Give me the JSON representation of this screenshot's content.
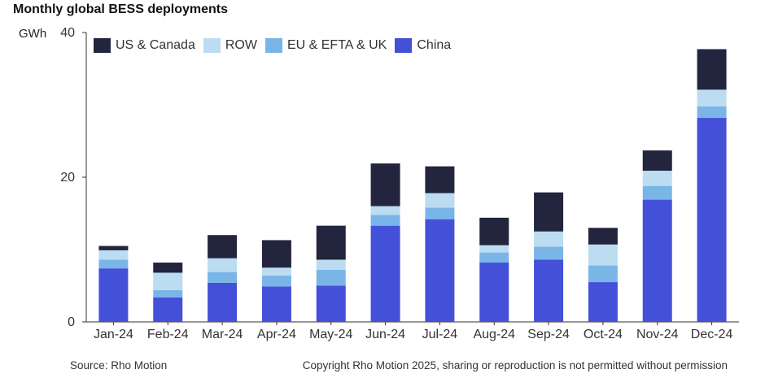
{
  "chart_data": {
    "type": "bar",
    "stacked": true,
    "title": "Monthly global BESS deployments",
    "ylabel": "GWh",
    "xlabel": "",
    "ylim": [
      0,
      40
    ],
    "yticks": [
      0,
      20,
      40
    ],
    "grid": false,
    "legend_position": "top-left",
    "categories": [
      "Jan-24",
      "Feb-24",
      "Mar-24",
      "Apr-24",
      "May-24",
      "Jun-24",
      "Jul-24",
      "Aug-24",
      "Sep-24",
      "Oct-24",
      "Nov-24",
      "Dec-24"
    ],
    "series": [
      {
        "name": "China",
        "color": "#4550d9",
        "values": [
          7.4,
          3.4,
          5.4,
          4.9,
          5.0,
          13.3,
          14.2,
          8.2,
          8.6,
          5.5,
          16.9,
          28.2
        ]
      },
      {
        "name": "EU & EFTA & UK",
        "color": "#7ab5e8",
        "values": [
          1.2,
          1.0,
          1.5,
          1.5,
          2.2,
          1.5,
          1.6,
          1.4,
          1.8,
          2.3,
          1.9,
          1.6
        ]
      },
      {
        "name": "ROW",
        "color": "#bcdcf2",
        "values": [
          1.3,
          2.4,
          1.9,
          1.1,
          1.4,
          1.2,
          2.0,
          1.0,
          2.1,
          2.9,
          2.1,
          2.3
        ]
      },
      {
        "name": "US & Canada",
        "color": "#23243d",
        "values": [
          0.6,
          1.4,
          3.2,
          3.8,
          4.7,
          5.9,
          3.7,
          3.8,
          5.4,
          2.3,
          2.8,
          5.6
        ]
      }
    ],
    "legend_order": [
      "US & Canada",
      "ROW",
      "EU & EFTA & UK",
      "China"
    ]
  },
  "footer": {
    "source": "Source: Rho Motion",
    "copyright": "Copyright Rho Motion 2025, sharing or reproduction is not permitted without permission"
  }
}
